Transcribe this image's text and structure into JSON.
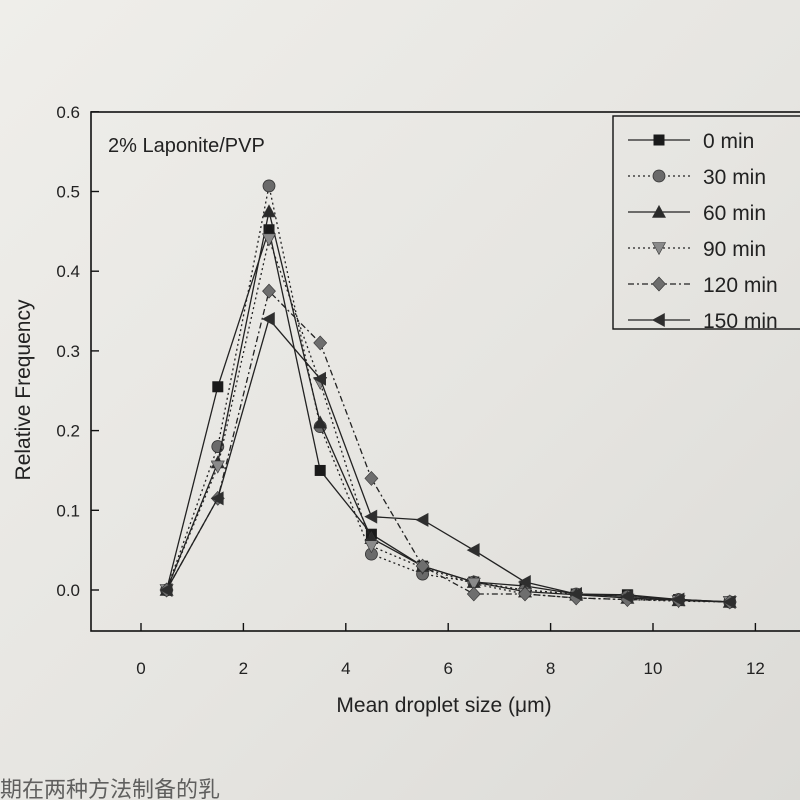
{
  "chart_data": {
    "type": "line",
    "annotation": "2% Laponite/PVP",
    "xlabel": "Mean droplet size (μm)",
    "ylabel": "Relative Frequency",
    "xlim": [
      -0.5,
      12.5
    ],
    "ylim": [
      -0.05,
      0.6
    ],
    "xticks": [
      "0",
      "2",
      "4",
      "6",
      "8",
      "10",
      "12"
    ],
    "yticks": [
      "0.0",
      "0.1",
      "0.2",
      "0.3",
      "0.4",
      "0.5",
      "0.6"
    ],
    "x": [
      0.5,
      1.5,
      2.5,
      3.5,
      4.5,
      5.5,
      6.5,
      7.5,
      8.5,
      9.5,
      10.5,
      11.5
    ],
    "legend_position": "top-right",
    "series": [
      {
        "name": "0 min",
        "marker": "square",
        "dash": "solid",
        "values": [
          0.0,
          0.255,
          0.452,
          0.15,
          0.07,
          0.03,
          0.01,
          0.005,
          -0.005,
          -0.006,
          -0.012,
          -0.015
        ]
      },
      {
        "name": "30 min",
        "marker": "circle",
        "dash": "dotted",
        "values": [
          0.0,
          0.18,
          0.507,
          0.205,
          0.045,
          0.02,
          0.01,
          0.0,
          -0.005,
          -0.008,
          -0.012,
          -0.015
        ]
      },
      {
        "name": "60 min",
        "marker": "triangle-up",
        "dash": "solid",
        "values": [
          0.0,
          0.16,
          0.475,
          0.21,
          0.065,
          0.03,
          0.01,
          -0.002,
          -0.006,
          -0.01,
          -0.013,
          -0.015
        ]
      },
      {
        "name": "90 min",
        "marker": "triangle-down",
        "dash": "dotted",
        "values": [
          0.0,
          0.155,
          0.44,
          0.26,
          0.055,
          0.028,
          0.008,
          -0.005,
          -0.01,
          -0.012,
          -0.014,
          -0.015
        ]
      },
      {
        "name": "120 min",
        "marker": "diamond",
        "dash": "dashdot",
        "values": [
          0.0,
          0.115,
          0.375,
          0.31,
          0.14,
          0.03,
          -0.005,
          -0.005,
          -0.01,
          -0.012,
          -0.013,
          -0.015
        ]
      },
      {
        "name": "150 min",
        "marker": "triangle-left",
        "dash": "solid",
        "values": [
          0.0,
          0.115,
          0.34,
          0.265,
          0.092,
          0.088,
          0.05,
          0.01,
          -0.005,
          -0.008,
          -0.012,
          -0.015
        ]
      }
    ]
  },
  "footer_text": "期在两种方法制备的乳"
}
